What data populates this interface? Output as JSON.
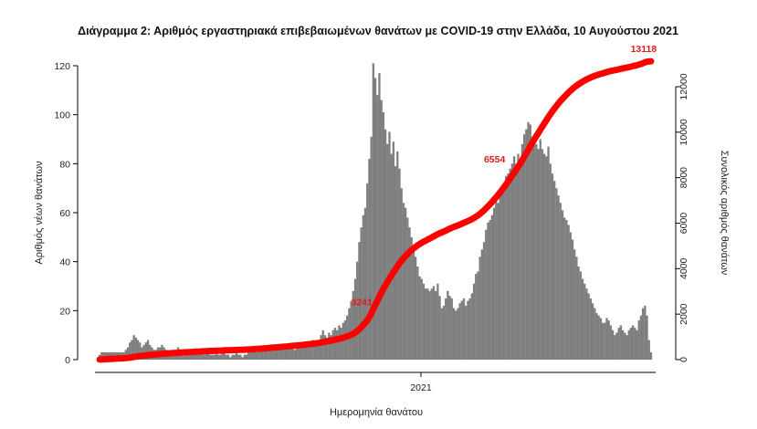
{
  "chart_data": {
    "type": "bar+line",
    "title": "Διάγραμμα 2: Αριθμός εργαστηριακά επιβεβαιωμένων θανάτων με COVID-19 στην Ελλάδα, 10 Αυγούστου 2021",
    "xlabel": "Ημερομηνία θανάτου",
    "ylabel_left": "Αριθμός νέων θανάτων",
    "ylabel_right": "Συνολικός αριθμός θανάτων",
    "x_tick_labels": [
      "2021"
    ],
    "ylim_left": [
      0,
      125
    ],
    "yticks_left": [
      0,
      20,
      40,
      60,
      80,
      100,
      120
    ],
    "ylim_right": [
      0,
      13500
    ],
    "yticks_right": [
      0,
      2000,
      4000,
      6000,
      8000,
      10000,
      12000
    ],
    "grid": false,
    "daily_deaths": [
      2,
      3,
      3,
      3,
      3,
      3,
      3,
      3,
      3,
      3,
      3,
      3,
      3,
      4,
      5,
      7,
      8,
      10,
      9,
      8,
      7,
      5,
      6,
      7,
      8,
      6,
      5,
      4,
      4,
      5,
      5,
      6,
      5,
      4,
      3,
      3,
      4,
      3,
      4,
      5,
      3,
      2,
      3,
      3,
      3,
      2,
      3,
      4,
      3,
      2,
      3,
      4,
      2,
      3,
      3,
      2,
      2,
      2,
      3,
      2,
      2,
      3,
      3,
      2,
      2,
      1,
      2,
      2,
      3,
      2,
      2,
      1,
      2,
      2,
      3,
      3,
      4,
      3,
      3,
      4,
      5,
      4,
      5,
      4,
      4,
      6,
      5,
      4,
      5,
      4,
      4,
      5,
      4,
      5,
      6,
      5,
      6,
      4,
      5,
      5,
      5,
      6,
      7,
      6,
      5,
      6,
      8,
      7,
      8,
      7,
      10,
      12,
      10,
      9,
      11,
      10,
      12,
      13,
      12,
      14,
      13,
      15,
      16,
      18,
      21,
      24,
      28,
      33,
      40,
      48,
      54,
      59,
      62,
      72,
      82,
      91,
      121,
      115,
      108,
      117,
      106,
      101,
      94,
      88,
      93,
      84,
      89,
      79,
      85,
      78,
      70,
      64,
      62,
      58,
      54,
      50,
      46,
      42,
      38,
      34,
      33,
      31,
      29,
      29,
      28,
      29,
      30,
      28,
      31,
      26,
      21,
      22,
      25,
      28,
      26,
      25,
      21,
      20,
      21,
      23,
      24,
      25,
      22,
      24,
      25,
      27,
      31,
      35,
      36,
      42,
      45,
      48,
      53,
      56,
      57,
      59,
      62,
      65,
      64,
      68,
      70,
      72,
      75,
      76,
      78,
      80,
      83,
      80,
      84,
      82,
      88,
      92,
      94,
      97,
      96,
      91,
      90,
      88,
      86,
      90,
      86,
      84,
      83,
      87,
      80,
      76,
      73,
      70,
      67,
      64,
      61,
      58,
      57,
      55,
      52,
      49,
      45,
      42,
      38,
      36,
      33,
      31,
      29,
      27,
      25,
      23,
      21,
      19,
      18,
      17,
      15,
      15,
      17,
      16,
      14,
      12,
      10,
      11,
      13,
      14,
      12,
      11,
      10,
      12,
      13,
      14,
      13,
      12,
      16,
      18,
      21,
      22,
      18,
      8,
      3
    ],
    "cumulative": {
      "series_name": "Συνολικός αριθμός θανάτων",
      "end_value": 13118
    },
    "annotations": [
      {
        "text": "13118",
        "color": "#e31a1c"
      },
      {
        "text": "6554",
        "color": "#e31a1c"
      },
      {
        "text": "3241",
        "color": "#e31a1c"
      }
    ],
    "colors": {
      "bars": "#7f7f7f",
      "cumulative_line": "#ff0000",
      "annotation": "#e31a1c"
    }
  }
}
